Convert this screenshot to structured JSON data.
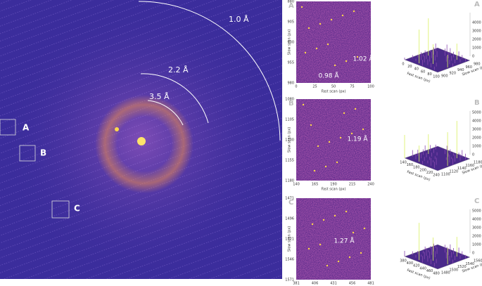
{
  "main": {
    "rings": [
      "1.0 Å",
      "2.2 Å",
      "3.5 Å"
    ],
    "boxes": [
      "A",
      "B",
      "C"
    ]
  },
  "zooms": [
    {
      "letter": "A",
      "yticks": [
        "880",
        "905",
        "930",
        "955",
        "980"
      ],
      "xticks": [
        "0",
        "25",
        "50",
        "75",
        "100"
      ],
      "xlabel": "Fast scan (px)",
      "ylabel": "Slow scan (px)",
      "notes": [
        "1.02 Å",
        "0.98 Å"
      ]
    },
    {
      "letter": "B",
      "yticks": [
        "1080",
        "1105",
        "1130",
        "1155",
        "1180"
      ],
      "xticks": [
        "140",
        "165",
        "190",
        "215",
        "240"
      ],
      "xlabel": "Fast scan (px)",
      "ylabel": "Slow scan (px)",
      "notes": [
        "1.19 Å"
      ]
    },
    {
      "letter": "C",
      "yticks": [
        "1471",
        "1496",
        "1521",
        "1546",
        "1571"
      ],
      "xticks": [
        "381",
        "406",
        "431",
        "456",
        "481"
      ],
      "xlabel": "Fast scan (px)",
      "ylabel": "Slow scan (px)",
      "notes": [
        "1.27 Å"
      ]
    }
  ],
  "surfaces": [
    {
      "letter": "A",
      "zticks": [
        "0",
        "1000",
        "2000",
        "3000",
        "4000"
      ],
      "fticks": [
        "0",
        "20",
        "40",
        "60",
        "80",
        "100"
      ],
      "sticks": [
        "900",
        "920",
        "940",
        "960",
        "980"
      ],
      "flabel": "Fast scan (px)",
      "slabel": "Slow scan (px)"
    },
    {
      "letter": "B",
      "zticks": [
        "0",
        "1000",
        "2000",
        "3000",
        "4000",
        "5000"
      ],
      "fticks": [
        "140",
        "160",
        "180",
        "200",
        "220",
        "240"
      ],
      "sticks": [
        "1100",
        "1120",
        "1140",
        "1160",
        "1180"
      ],
      "flabel": "Fast scan (px)",
      "slabel": "Slow scan (px)"
    },
    {
      "letter": "C",
      "zticks": [
        "0",
        "1000",
        "2000",
        "3000",
        "4000",
        "5000"
      ],
      "fticks": [
        "380",
        "400",
        "420",
        "440",
        "460",
        "480"
      ],
      "sticks": [
        "1480",
        "1500",
        "1520",
        "1540",
        "1560"
      ],
      "flabel": "Fast scan (px)",
      "slabel": "Slow scan (px)"
    }
  ]
}
